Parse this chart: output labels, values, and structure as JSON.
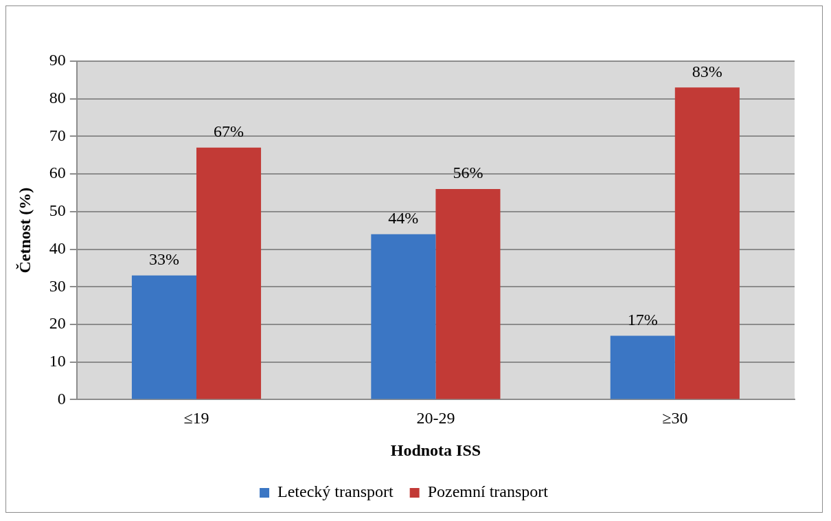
{
  "chart_data": {
    "type": "bar",
    "categories": [
      "≤19",
      "20-29",
      "≥30"
    ],
    "series": [
      {
        "name": "Letecký transport",
        "color": "#3b76c4",
        "values": [
          33,
          44,
          17
        ],
        "value_labels": [
          "33%",
          "44%",
          "17%"
        ]
      },
      {
        "name": "Pozemní transport",
        "color": "#c23a36",
        "values": [
          67,
          56,
          83
        ],
        "value_labels": [
          "67%",
          "56%",
          "83%"
        ]
      }
    ],
    "xlabel": "Hodnota ISS",
    "ylabel": "Četnost (%)",
    "ylim": [
      0,
      90
    ],
    "yticks": [
      0,
      10,
      20,
      30,
      40,
      50,
      60,
      70,
      80,
      90
    ],
    "grid": "y",
    "legend": "bottom"
  }
}
